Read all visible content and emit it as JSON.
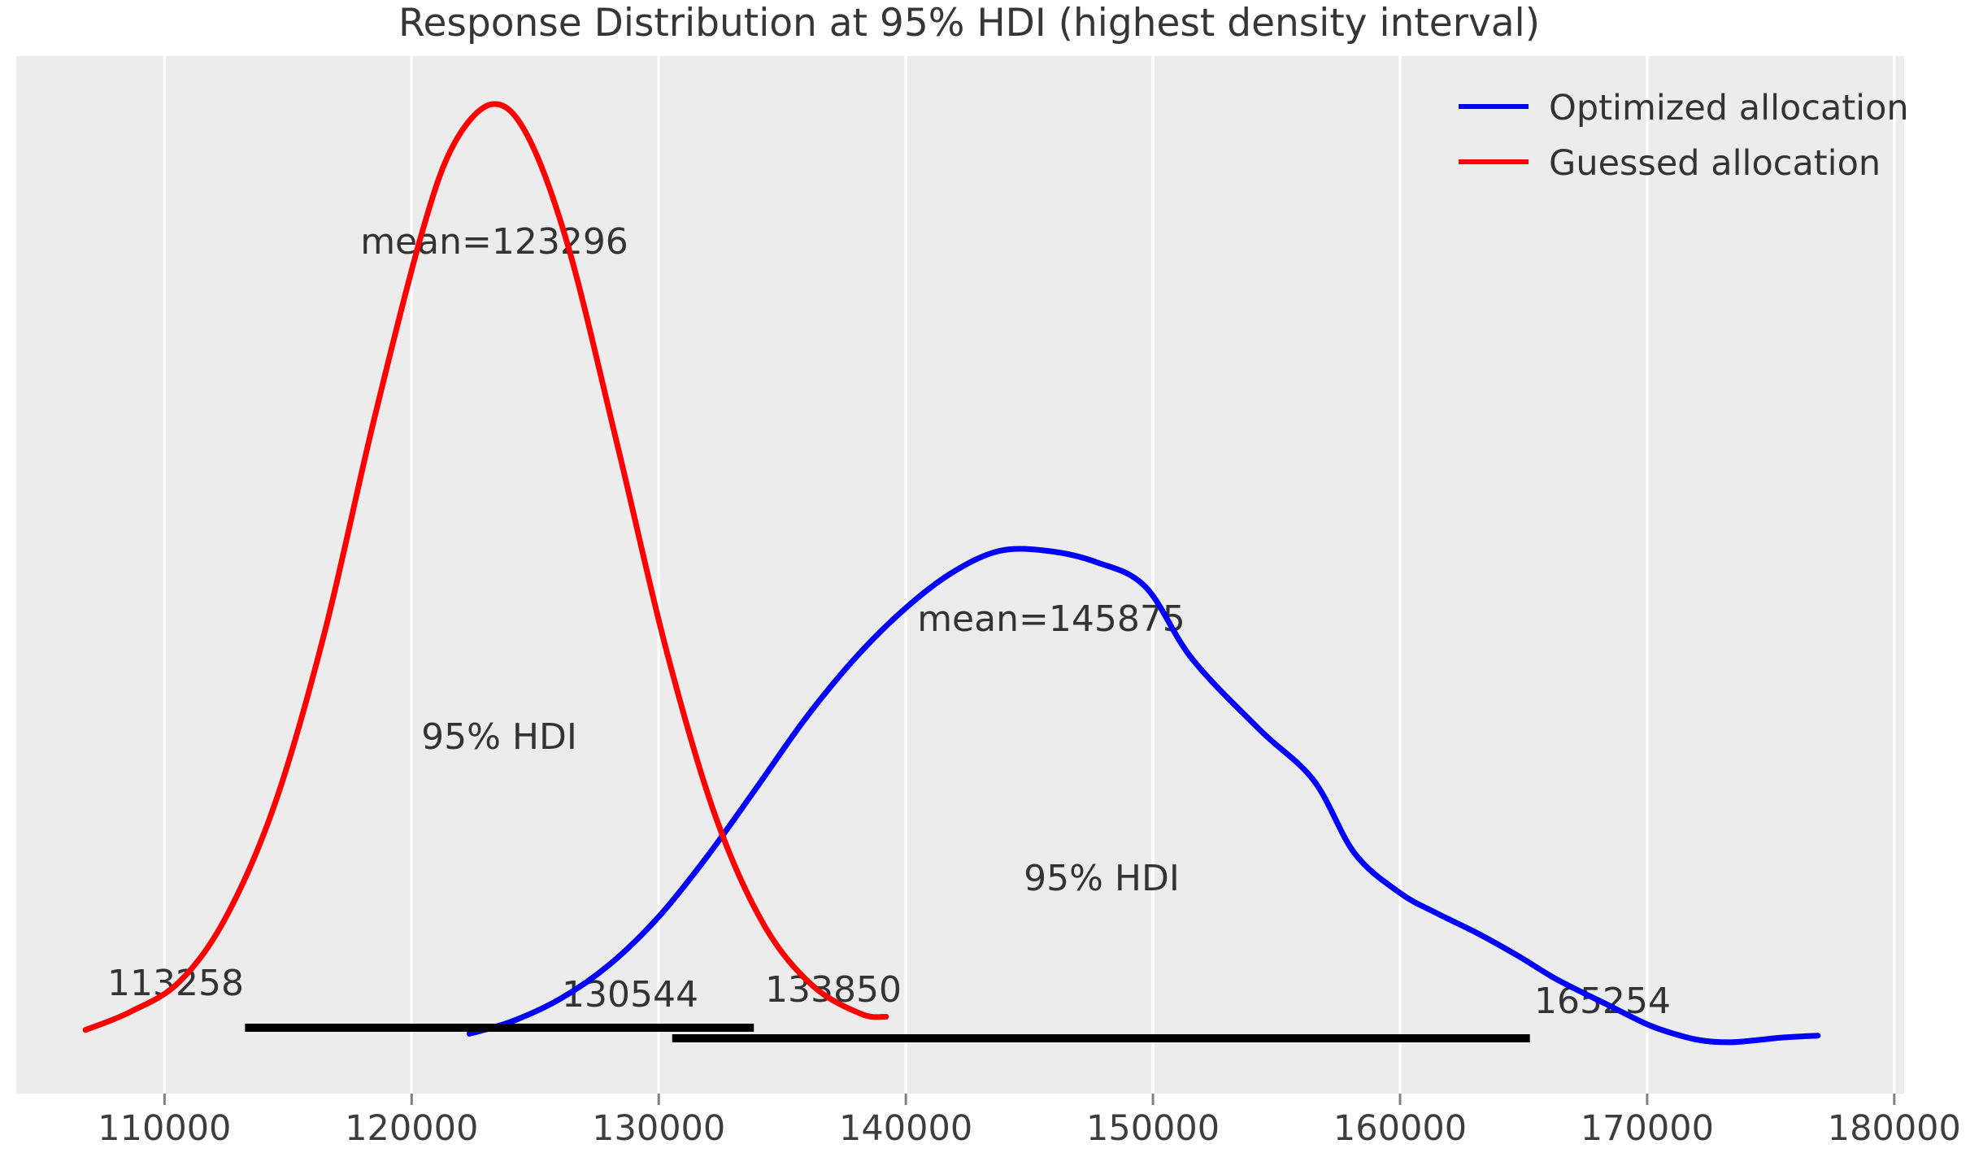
{
  "title": "Response Distribution at 95% HDI (highest density interval)",
  "legend": {
    "position": "upper right",
    "items": [
      {
        "label": "Optimized allocation",
        "color": "#0000ff"
      },
      {
        "label": "Guessed allocation",
        "color": "#ff0000"
      }
    ]
  },
  "annotations": {
    "mean_guessed": "mean=123296",
    "mean_optimized": "mean=145875",
    "hdi_label_guessed": "95% HDI",
    "hdi_label_optimized": "95% HDI",
    "hdi_lower_guessed": "113258",
    "hdi_upper_guessed": "133850",
    "hdi_lower_optimized": "130544",
    "hdi_upper_optimized": "165254"
  },
  "colors": {
    "plot_background": "#ececec",
    "gridline": "#ffffff",
    "tick_mark": "#808080",
    "hdi_bar": "#000000",
    "text": "#333333",
    "optimized": "#0000ff",
    "guessed": "#ff0000"
  },
  "chart_data": {
    "type": "line",
    "title": "Response Distribution at 95% HDI (highest density interval)",
    "xlabel": "",
    "ylabel": "",
    "x_ticks": [
      110000,
      120000,
      130000,
      140000,
      150000,
      160000,
      170000,
      180000
    ],
    "x_range": [
      104000,
      180400
    ],
    "density_range": [
      -0.05,
      1.05
    ],
    "grid": "vertical white gridlines on gray background, no axis spines, no y axis",
    "legend_position": "upper right",
    "series": [
      {
        "name": "Optimized allocation",
        "color": "#0000ff",
        "mean": 145875,
        "hdi_95": [
          130544,
          165254
        ],
        "points": [
          [
            122340,
            0.016
          ],
          [
            124050,
            0.029
          ],
          [
            126020,
            0.053
          ],
          [
            128000,
            0.089
          ],
          [
            129970,
            0.139
          ],
          [
            131940,
            0.203
          ],
          [
            133920,
            0.275
          ],
          [
            135890,
            0.348
          ],
          [
            137860,
            0.411
          ],
          [
            139840,
            0.463
          ],
          [
            141810,
            0.503
          ],
          [
            143780,
            0.527
          ],
          [
            145760,
            0.527
          ],
          [
            147730,
            0.515
          ],
          [
            149700,
            0.489
          ],
          [
            151580,
            0.413
          ],
          [
            154310,
            0.338
          ],
          [
            156510,
            0.284
          ],
          [
            158160,
            0.207
          ],
          [
            160000,
            0.165
          ],
          [
            161450,
            0.144
          ],
          [
            163090,
            0.123
          ],
          [
            164740,
            0.099
          ],
          [
            166380,
            0.073
          ],
          [
            168450,
            0.046
          ],
          [
            170000,
            0.026
          ],
          [
            171080,
            0.016
          ],
          [
            172170,
            0.009
          ],
          [
            173290,
            0.007
          ],
          [
            174370,
            0.009
          ],
          [
            175460,
            0.012
          ],
          [
            176910,
            0.014
          ]
        ]
      },
      {
        "name": "Guessed allocation",
        "color": "#ff0000",
        "mean": 123296,
        "hdi_95": [
          113258,
          133850
        ],
        "points": [
          [
            106800,
            0.02
          ],
          [
            108600,
            0.039
          ],
          [
            110600,
            0.071
          ],
          [
            112500,
            0.14
          ],
          [
            114500,
            0.262
          ],
          [
            116500,
            0.443
          ],
          [
            118450,
            0.663
          ],
          [
            120430,
            0.865
          ],
          [
            121740,
            0.959
          ],
          [
            123290,
            1.0
          ],
          [
            124700,
            0.966
          ],
          [
            126350,
            0.848
          ],
          [
            128320,
            0.64
          ],
          [
            130300,
            0.423
          ],
          [
            132270,
            0.248
          ],
          [
            134240,
            0.132
          ],
          [
            136220,
            0.067
          ],
          [
            138190,
            0.037
          ],
          [
            139200,
            0.034
          ]
        ]
      }
    ]
  }
}
